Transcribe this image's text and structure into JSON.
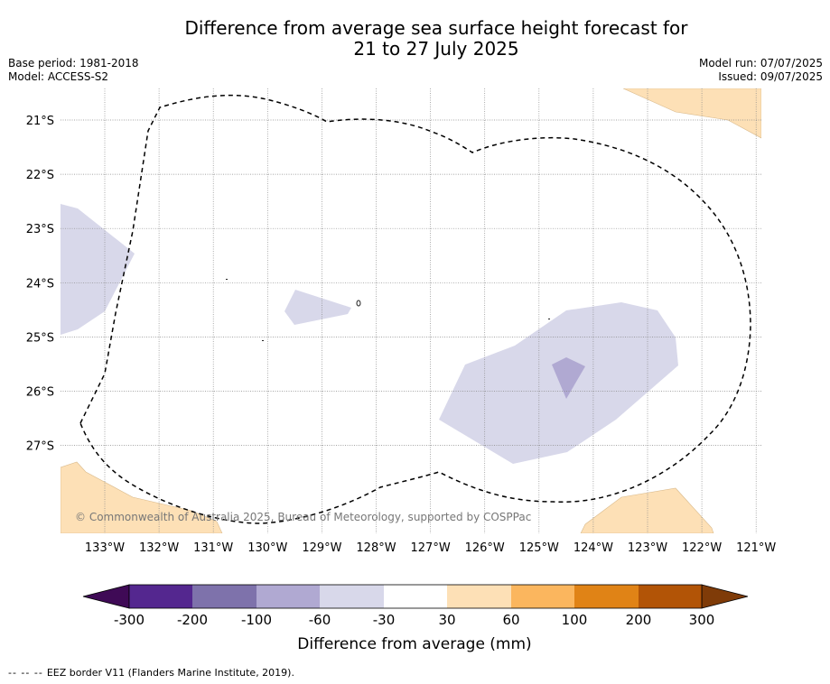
{
  "title": {
    "line1": "Difference from average sea surface height forecast for",
    "line2": "21 to 27 July 2025"
  },
  "meta_left": {
    "base_period": "Base period: 1981-2018",
    "model": "Model: ACCESS-S2"
  },
  "meta_right": {
    "model_run": "Model run: 07/07/2025",
    "issued": "Issued: 09/07/2025"
  },
  "map": {
    "lat_labels": [
      "21°S",
      "22°S",
      "23°S",
      "24°S",
      "25°S",
      "26°S",
      "27°S"
    ],
    "lon_labels": [
      "133°W",
      "132°W",
      "131°W",
      "130°W",
      "129°W",
      "128°W",
      "127°W",
      "126°W",
      "125°W",
      "124°W",
      "123°W",
      "122°W",
      "121°W"
    ],
    "copyright": "© Commonwealth of Australia 2025, Bureau of Meteorology, supported by COSPPac",
    "colors": {
      "minus_30_60": "#d8d8ea",
      "minus_60_100": "#b0a9d2",
      "plus_30_60": "#fde0b6"
    }
  },
  "colorbar": {
    "label": "Difference from average (mm)",
    "tick_labels": [
      "-300",
      "-200",
      "-100",
      "-60",
      "-30",
      "30",
      "60",
      "100",
      "200",
      "300"
    ],
    "colors": [
      "#3f0a56",
      "#54278f",
      "#7e72ab",
      "#b0a9d2",
      "#d8d8ea",
      "#ffffff",
      "#fde0b6",
      "#fbb65e",
      "#e08316",
      "#b25406",
      "#7f3b08"
    ]
  },
  "footer": {
    "legend_dash": "-- -- --",
    "legend_text": "EEZ border V11 (Flanders Marine Institute, 2019)."
  }
}
